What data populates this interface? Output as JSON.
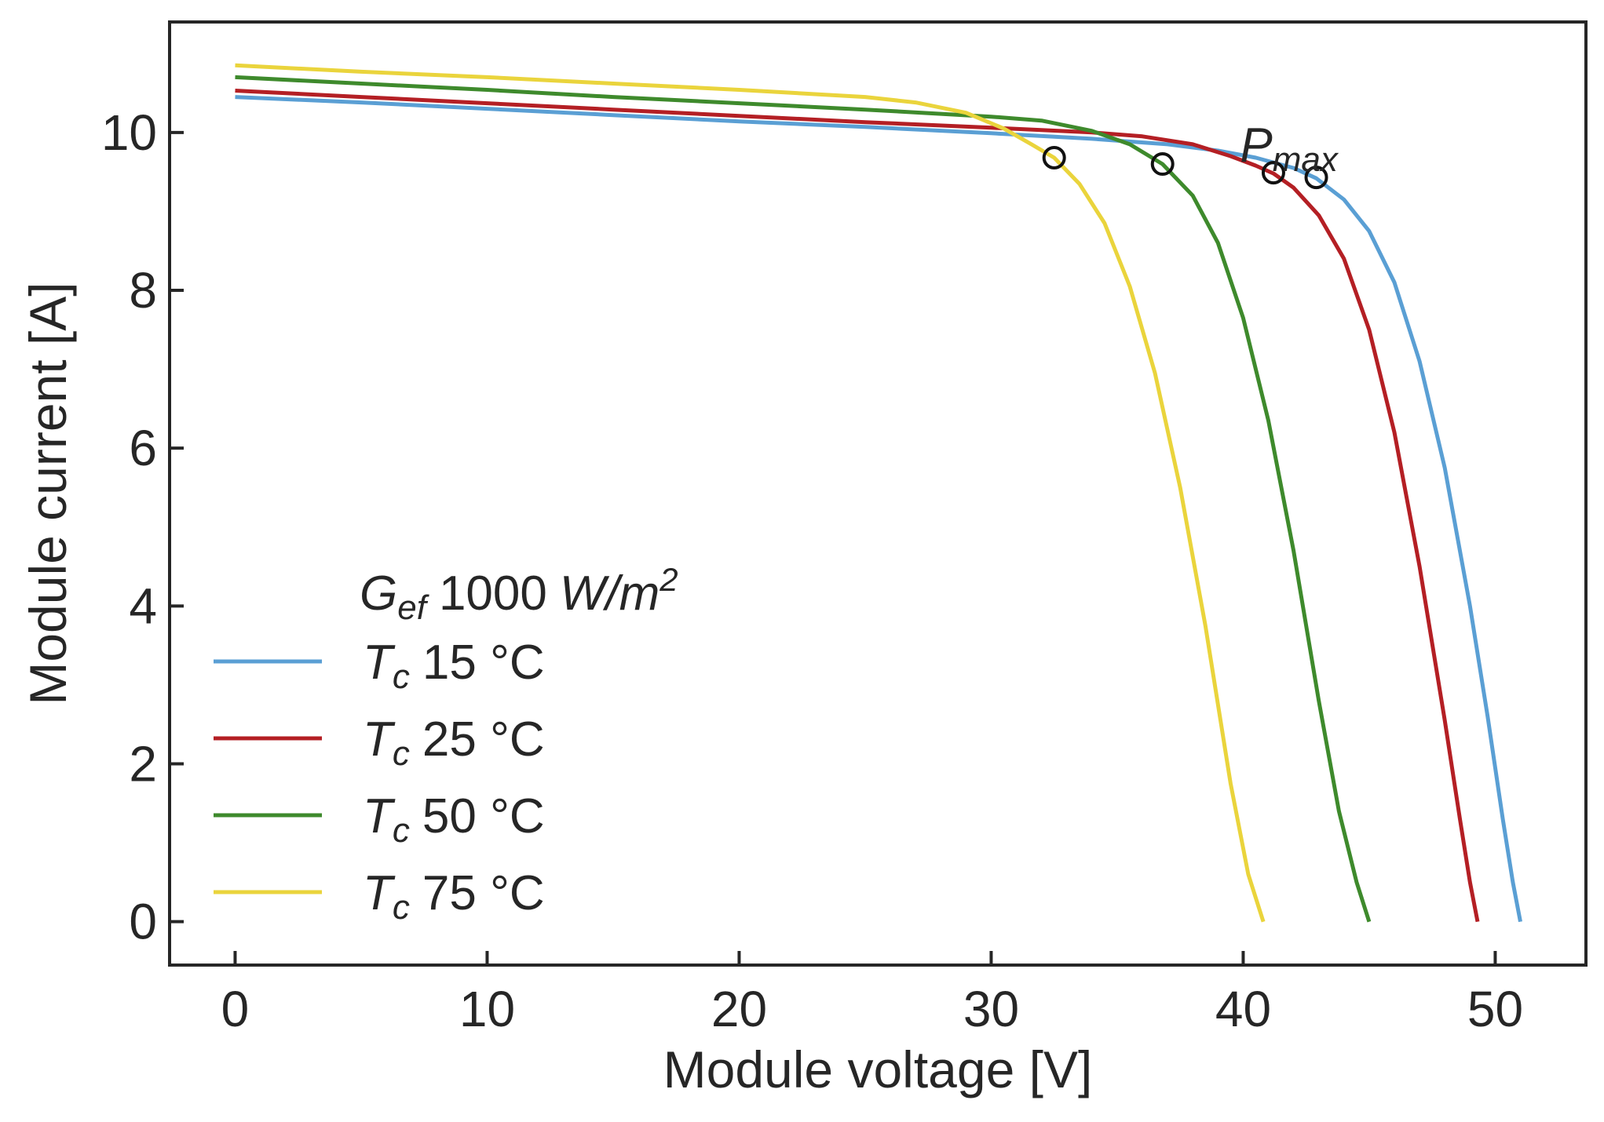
{
  "chart_data": {
    "type": "line",
    "title": "",
    "xlabel": "Module voltage [V]",
    "ylabel": "Module current [A]",
    "xlim": [
      -2.6,
      53.6
    ],
    "ylim": [
      -0.55,
      11.4
    ],
    "x_ticks": [
      0,
      10,
      20,
      30,
      40,
      50
    ],
    "y_ticks": [
      0,
      2,
      4,
      6,
      8,
      10
    ],
    "grid": false,
    "legend_position": "lower-left",
    "legend_title": {
      "symbol": "G",
      "subscript": "ef",
      "value": "1000",
      "unit_base": "W/m",
      "unit_exp": "2"
    },
    "annotation": {
      "symbol": "P",
      "subscript": "max",
      "x": 41.9,
      "y": 9.85
    },
    "series": [
      {
        "symbol": "T",
        "subscript": "c",
        "label": "15 °C",
        "color": "#5a9fd4",
        "x": [
          0,
          5,
          10,
          15,
          20,
          25,
          30,
          34,
          37,
          39,
          40.5,
          42,
          42.9,
          44,
          45,
          46,
          47,
          48,
          49,
          49.7,
          50.3,
          50.7,
          51
        ],
        "y": [
          10.45,
          10.38,
          10.3,
          10.22,
          10.14,
          10.07,
          9.99,
          9.92,
          9.85,
          9.77,
          9.68,
          9.55,
          9.42,
          9.15,
          8.75,
          8.1,
          7.1,
          5.75,
          4.0,
          2.6,
          1.3,
          0.5,
          0
        ],
        "pmax": {
          "x": 42.9,
          "y": 9.43
        }
      },
      {
        "symbol": "T",
        "subscript": "c",
        "label": "25 °C",
        "color": "#b41f24",
        "x": [
          0,
          5,
          10,
          15,
          20,
          25,
          30,
          34,
          36,
          38,
          39.5,
          40.5,
          41.2,
          42,
          43,
          44,
          45,
          46,
          47,
          48,
          48.6,
          49,
          49.3
        ],
        "y": [
          10.53,
          10.45,
          10.37,
          10.29,
          10.21,
          10.13,
          10.06,
          10.0,
          9.95,
          9.85,
          9.7,
          9.58,
          9.48,
          9.3,
          8.95,
          8.4,
          7.5,
          6.2,
          4.5,
          2.55,
          1.3,
          0.5,
          0
        ],
        "pmax": {
          "x": 41.2,
          "y": 9.49
        }
      },
      {
        "symbol": "T",
        "subscript": "c",
        "label": "50 °C",
        "color": "#3e8a2c",
        "x": [
          0,
          5,
          10,
          15,
          20,
          25,
          30,
          32,
          34,
          35.5,
          36.8,
          38,
          39,
          40,
          41,
          42,
          43,
          43.8,
          44.5,
          45
        ],
        "y": [
          10.7,
          10.62,
          10.54,
          10.45,
          10.37,
          10.29,
          10.2,
          10.15,
          10.02,
          9.85,
          9.6,
          9.2,
          8.6,
          7.65,
          6.35,
          4.7,
          2.8,
          1.4,
          0.5,
          0
        ],
        "pmax": {
          "x": 36.8,
          "y": 9.6
        }
      },
      {
        "symbol": "T",
        "subscript": "c",
        "label": "75 °C",
        "color": "#ead43c",
        "x": [
          0,
          5,
          10,
          15,
          20,
          25,
          27,
          29,
          30.5,
          31.6,
          32.5,
          33.5,
          34.5,
          35.5,
          36.5,
          37.5,
          38.5,
          39.5,
          40.2,
          40.8
        ],
        "y": [
          10.85,
          10.77,
          10.7,
          10.62,
          10.54,
          10.45,
          10.38,
          10.25,
          10.05,
          9.85,
          9.68,
          9.35,
          8.85,
          8.05,
          6.95,
          5.5,
          3.75,
          1.75,
          0.6,
          0
        ],
        "pmax": {
          "x": 32.5,
          "y": 9.68
        }
      }
    ]
  }
}
